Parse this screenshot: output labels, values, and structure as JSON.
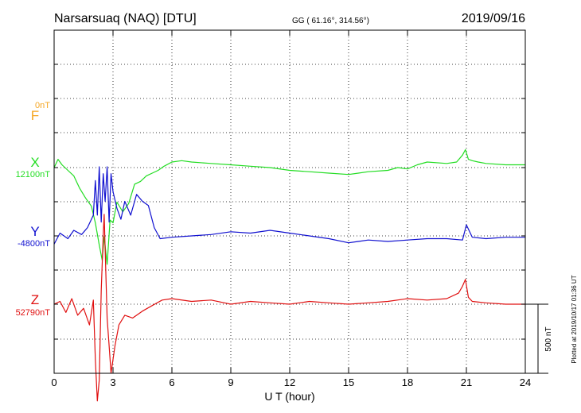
{
  "header": {
    "station": "Narsarsuaq (NAQ)  [DTU]",
    "coords": "GG ( 61.16°, 314.56°)",
    "date": "2019/09/16"
  },
  "plotted_note": "Plotted at 2019/10/17 01:36 UT",
  "scale_label": "500 nT",
  "colors": {
    "F": "#f5a623",
    "X": "#22dd22",
    "Y": "#1010d0",
    "Z": "#e01010",
    "frame": "#000000",
    "grid": "#000000"
  },
  "chart_data": {
    "type": "line",
    "xlabel": "U T (hour)",
    "xlim": [
      0,
      24
    ],
    "xticks": [
      0,
      3,
      6,
      9,
      12,
      15,
      18,
      21,
      24
    ],
    "xtick_labels": [
      "0",
      "3",
      "6",
      "9",
      "12",
      "15",
      "18",
      "21",
      "24"
    ],
    "grid": true,
    "scale_bar_nT": 500,
    "series": [
      {
        "name": "F",
        "baseline_label": "0nT",
        "x": [],
        "y": []
      },
      {
        "name": "X",
        "baseline_label": "12100nT",
        "x": [
          0,
          0.2,
          0.4,
          0.7,
          1.0,
          1.3,
          1.6,
          1.9,
          2.1,
          2.3,
          2.45,
          2.55,
          2.7,
          2.85,
          3.0,
          3.2,
          3.5,
          3.8,
          4.1,
          4.4,
          4.7,
          5.0,
          5.3,
          5.6,
          6.0,
          6.5,
          7.0,
          8.0,
          9.0,
          10.0,
          11.0,
          12.0,
          13.0,
          14.0,
          15.0,
          15.5,
          16.0,
          17.0,
          17.5,
          18.0,
          18.5,
          19.0,
          20.0,
          20.5,
          20.8,
          20.95,
          21.1,
          21.3,
          21.6,
          22.0,
          23.0,
          24.0
        ],
        "y": [
          0,
          60,
          20,
          -20,
          -60,
          -150,
          -220,
          -280,
          -400,
          -560,
          -670,
          -500,
          -700,
          -380,
          -400,
          -250,
          -320,
          -260,
          -120,
          -100,
          -60,
          -40,
          -20,
          10,
          40,
          50,
          40,
          30,
          20,
          10,
          0,
          -20,
          -30,
          -40,
          -50,
          -40,
          -30,
          -20,
          0,
          -10,
          20,
          40,
          30,
          40,
          90,
          130,
          60,
          50,
          40,
          30,
          20,
          20
        ]
      },
      {
        "name": "Y",
        "baseline_label": "-4800nT",
        "x": [
          0,
          0.3,
          0.7,
          1.0,
          1.4,
          1.7,
          2.0,
          2.1,
          2.2,
          2.3,
          2.4,
          2.5,
          2.6,
          2.7,
          2.8,
          2.9,
          3.0,
          3.2,
          3.4,
          3.6,
          3.9,
          4.2,
          4.5,
          4.8,
          5.1,
          5.4,
          6.0,
          7.0,
          8.0,
          9.0,
          10.0,
          11.0,
          12.0,
          13.0,
          14.0,
          15.0,
          15.5,
          16.0,
          17.0,
          18.0,
          19.0,
          20.0,
          20.8,
          21.0,
          21.3,
          22.0,
          23.0,
          24.0
        ],
        "y": [
          -60,
          20,
          -20,
          40,
          10,
          60,
          150,
          400,
          150,
          500,
          100,
          450,
          250,
          500,
          100,
          450,
          320,
          200,
          120,
          250,
          150,
          300,
          250,
          220,
          60,
          -20,
          -10,
          0,
          10,
          30,
          20,
          40,
          20,
          0,
          -20,
          -50,
          -40,
          -30,
          -40,
          -30,
          -20,
          -20,
          -30,
          80,
          -10,
          -20,
          -10,
          -10
        ]
      },
      {
        "name": "Z",
        "baseline_label": "52790nT",
        "x": [
          0,
          0.3,
          0.6,
          0.9,
          1.2,
          1.5,
          1.8,
          2.0,
          2.1,
          2.2,
          2.3,
          2.4,
          2.5,
          2.55,
          2.6,
          2.7,
          2.8,
          2.9,
          3.0,
          3.1,
          3.3,
          3.6,
          4.0,
          4.5,
          5.0,
          5.5,
          6.0,
          7.0,
          8.0,
          9.0,
          10.0,
          11.0,
          12.0,
          13.0,
          14.0,
          15.0,
          16.0,
          17.0,
          18.0,
          19.0,
          20.0,
          20.6,
          20.8,
          20.95,
          21.1,
          21.3,
          22.0,
          23.0,
          24.0
        ],
        "y": [
          0,
          20,
          -60,
          40,
          -80,
          -30,
          -150,
          30,
          -400,
          -700,
          -550,
          100,
          500,
          650,
          400,
          -100,
          -300,
          -500,
          -400,
          -300,
          -150,
          -80,
          -100,
          -50,
          -10,
          30,
          40,
          20,
          30,
          0,
          20,
          10,
          0,
          20,
          10,
          0,
          10,
          20,
          40,
          30,
          40,
          80,
          130,
          180,
          50,
          20,
          10,
          0,
          0
        ]
      }
    ]
  }
}
